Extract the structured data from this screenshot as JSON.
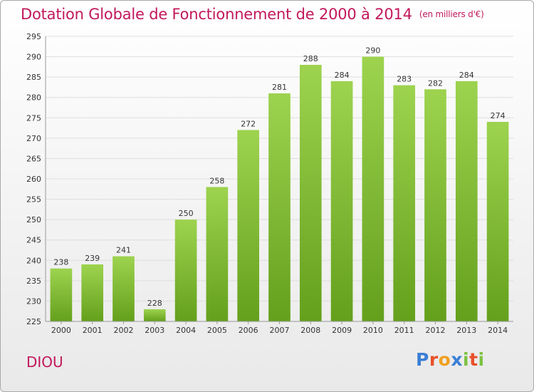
{
  "header": {
    "title": "Dotation Globale de Fonctionnement de 2000 à 2014",
    "unit": "(en milliers d'€)"
  },
  "footer": {
    "commune": "DIOU",
    "logo_letters": [
      {
        "ch": "P",
        "color": "#3a7fd5"
      },
      {
        "ch": "r",
        "color": "#e8502a"
      },
      {
        "ch": "o",
        "color": "#f0a020"
      },
      {
        "ch": "x",
        "color": "#3a7fd5"
      },
      {
        "ch": "i",
        "color": "#7cc242"
      },
      {
        "ch": "t",
        "color": "#e8502a"
      },
      {
        "ch": "i",
        "color": "#7cc242"
      }
    ]
  },
  "chart_data": {
    "type": "bar",
    "title": "Dotation Globale de Fonctionnement de 2000 à 2014",
    "subtitle": "(en milliers d'€)",
    "xlabel": "",
    "ylabel": "",
    "categories": [
      "2000",
      "2001",
      "2002",
      "2003",
      "2004",
      "2005",
      "2006",
      "2007",
      "2008",
      "2009",
      "2010",
      "2011",
      "2012",
      "2013",
      "2014"
    ],
    "values": [
      238,
      239,
      241,
      228,
      250,
      258,
      272,
      281,
      288,
      284,
      290,
      283,
      282,
      284,
      274
    ],
    "ylim": [
      225,
      295
    ],
    "yticks": [
      225,
      230,
      235,
      240,
      245,
      250,
      255,
      260,
      265,
      270,
      275,
      280,
      285,
      290,
      295
    ],
    "grid": true,
    "bar_color": "#8cc63f"
  }
}
